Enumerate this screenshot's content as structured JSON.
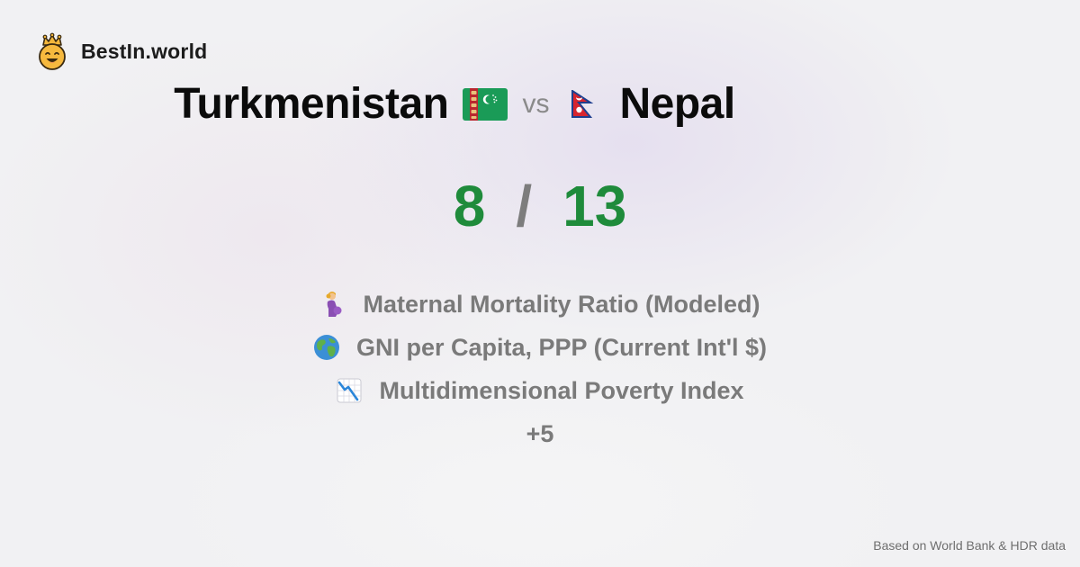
{
  "brand": {
    "name": "BestIn.world",
    "logo_icon": "crowned-smiley-icon"
  },
  "comparison": {
    "country_a": {
      "name": "Turkmenistan",
      "flag_icon": "turkmenistan-flag-icon",
      "score": "8"
    },
    "vs_label": "vs",
    "country_b": {
      "name": "Nepal",
      "flag_icon": "nepal-flag-icon",
      "score": "13"
    },
    "score_separator": "/"
  },
  "metrics": [
    {
      "label": "Maternal Mortality Ratio (Modeled)",
      "icon": "pregnant-woman-icon"
    },
    {
      "label": "GNI per Capita, PPP (Current Int'l $)",
      "icon": "globe-icon"
    },
    {
      "label": "Multidimensional Poverty Index",
      "icon": "chart-decreasing-icon"
    }
  ],
  "more_label": "+5",
  "footer": {
    "source": "Based on World Bank & HDR data"
  },
  "colors": {
    "score_green": "#1f8b3b",
    "muted_gray": "#7a7a7a",
    "background": "#f1f1f3"
  }
}
